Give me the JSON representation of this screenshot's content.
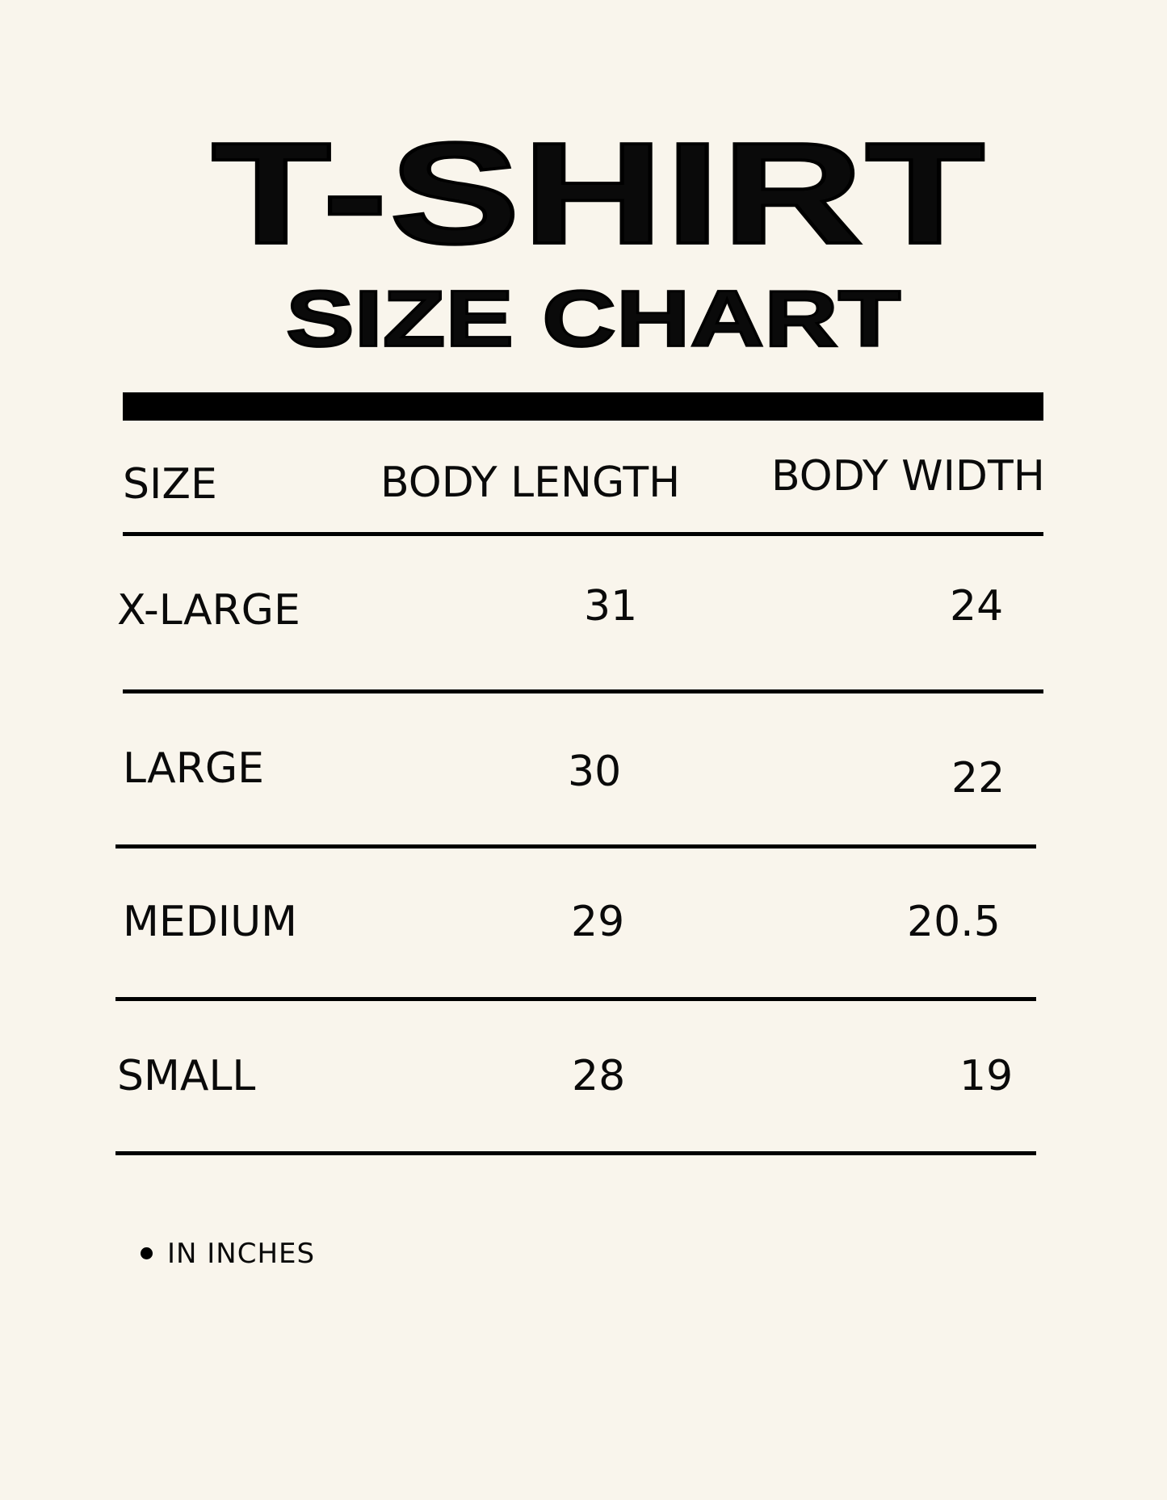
{
  "title": "T-SHIRT",
  "subtitle": "SIZE CHART",
  "table": {
    "headers": [
      "SIZE",
      "BODY LENGTH",
      "BODY WIDTH"
    ],
    "rows": [
      {
        "size": "X-LARGE",
        "length": "31",
        "width": "24"
      },
      {
        "size": "LARGE",
        "length": "30",
        "width": "22"
      },
      {
        "size": "MEDIUM",
        "length": "29",
        "width": "20.5"
      },
      {
        "size": "SMALL",
        "length": "28",
        "width": "19"
      }
    ]
  },
  "note": "IN INCHES",
  "colors": {
    "background": "#f9f5ec",
    "text": "#000000"
  }
}
